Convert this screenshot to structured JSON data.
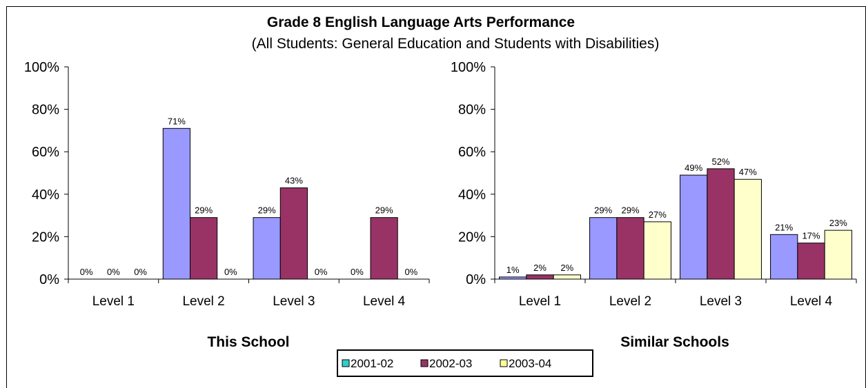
{
  "title": "Grade 8 English Language Arts Performance",
  "subtitle": "(All Students:  General Education and Students with Disabilities)",
  "legend": [
    {
      "label": "2001-02",
      "color": "#33CCCC"
    },
    {
      "label": "2002-03",
      "color": "#993366"
    },
    {
      "label": "2003-04",
      "color": "#FFFF99"
    }
  ],
  "chart_data": [
    {
      "type": "bar",
      "title": "This School",
      "categories": [
        "Level 1",
        "Level 2",
        "Level 3",
        "Level 4"
      ],
      "ylim": [
        0,
        100
      ],
      "yticks": [
        "0%",
        "20%",
        "40%",
        "60%",
        "80%",
        "100%"
      ],
      "legend_position": "bottom",
      "series": [
        {
          "name": "2001-02",
          "values": [
            0,
            71,
            29,
            0
          ],
          "labels": [
            "0%",
            "71%",
            "29%",
            "0%"
          ],
          "fill": "#9999FF"
        },
        {
          "name": "2002-03",
          "values": [
            0,
            29,
            43,
            29
          ],
          "labels": [
            "0%",
            "29%",
            "43%",
            "29%"
          ],
          "fill": "#993366"
        },
        {
          "name": "2003-04",
          "values": [
            0,
            0,
            0,
            0
          ],
          "labels": [
            "0%",
            "0%",
            "0%",
            "0%"
          ],
          "fill": "#FFFFCC"
        }
      ]
    },
    {
      "type": "bar",
      "title": "Similar Schools",
      "categories": [
        "Level 1",
        "Level 2",
        "Level 3",
        "Level 4"
      ],
      "ylim": [
        0,
        100
      ],
      "yticks": [
        "0%",
        "20%",
        "40%",
        "60%",
        "80%",
        "100%"
      ],
      "legend_position": "bottom",
      "series": [
        {
          "name": "2001-02",
          "values": [
            1,
            29,
            49,
            21
          ],
          "labels": [
            "1%",
            "29%",
            "49%",
            "21%"
          ],
          "fill": "#9999FF"
        },
        {
          "name": "2002-03",
          "values": [
            2,
            29,
            52,
            17
          ],
          "labels": [
            "2%",
            "29%",
            "52%",
            "17%"
          ],
          "fill": "#993366"
        },
        {
          "name": "2003-04",
          "values": [
            2,
            27,
            47,
            23
          ],
          "labels": [
            "2%",
            "27%",
            "47%",
            "23%"
          ],
          "fill": "#FFFFCC"
        }
      ]
    }
  ]
}
